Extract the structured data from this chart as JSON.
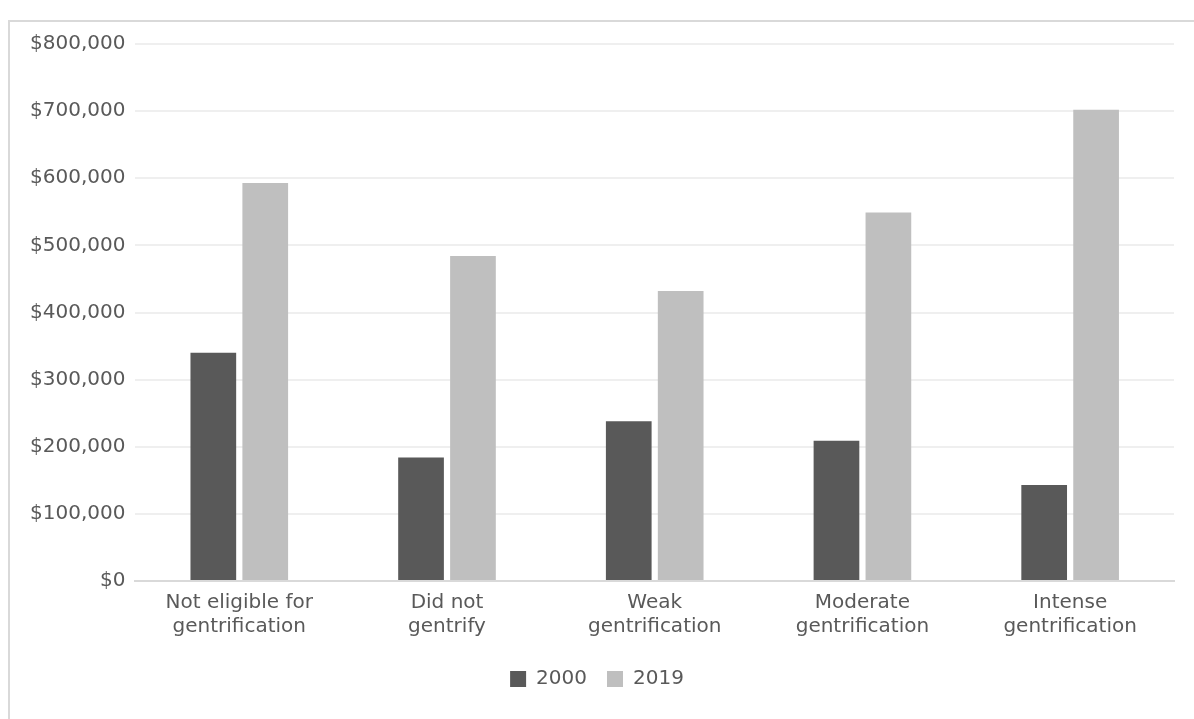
{
  "chart_data": {
    "type": "bar",
    "categories": [
      "Not eligible for gentrification",
      "Did not gentrify",
      "Weak gentrification",
      "Moderate gentrification",
      "Intense gentrification"
    ],
    "series": [
      {
        "name": "2000",
        "color": "#595959",
        "values": [
          340000,
          184000,
          238000,
          209000,
          143000
        ]
      },
      {
        "name": "2019",
        "color": "#bfbfbf",
        "values": [
          593000,
          484000,
          432000,
          549000,
          702000
        ]
      }
    ],
    "ylim": [
      0,
      800000
    ],
    "yticks": [
      {
        "value": 0,
        "label": "$0"
      },
      {
        "value": 100000,
        "label": "$100,000"
      },
      {
        "value": 200000,
        "label": "$200,000"
      },
      {
        "value": 300000,
        "label": "$300,000"
      },
      {
        "value": 400000,
        "label": "$400,000"
      },
      {
        "value": 500000,
        "label": "$500,000"
      },
      {
        "value": 600000,
        "label": "$600,000"
      },
      {
        "value": 700000,
        "label": "$700,000"
      },
      {
        "value": 800000,
        "label": "$800,000"
      }
    ],
    "grid": "y",
    "legend": "bottom"
  }
}
